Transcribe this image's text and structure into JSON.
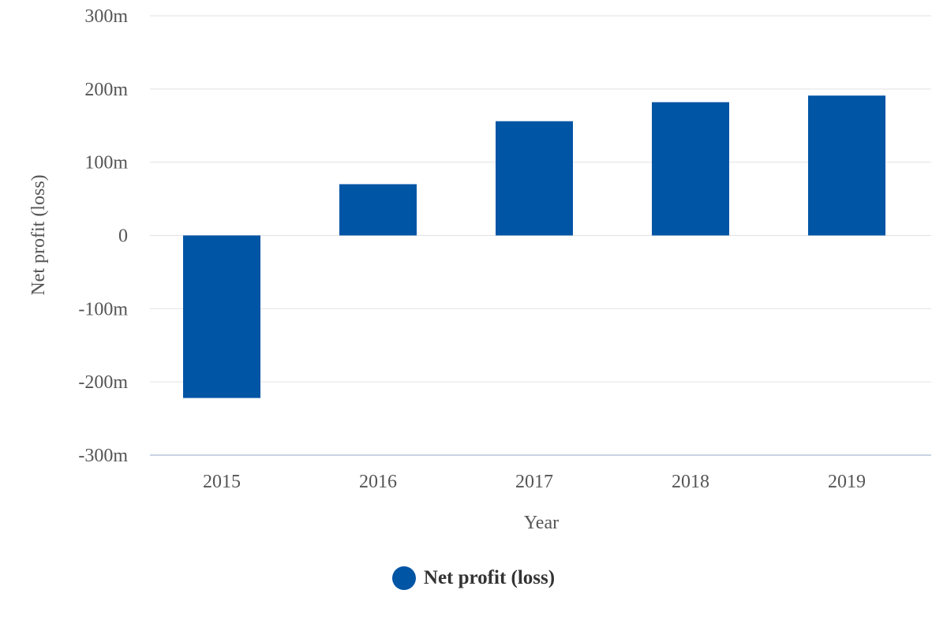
{
  "chart_data": {
    "type": "bar",
    "categories": [
      "2015",
      "2016",
      "2017",
      "2018",
      "2019"
    ],
    "series": [
      {
        "name": "Net profit (loss)",
        "values": [
          -222,
          70,
          156,
          182,
          191
        ],
        "color": "#0055a5"
      }
    ],
    "xlabel": "Year",
    "ylabel": "Net profit (loss)",
    "ylim": [
      -300,
      300
    ],
    "yticks": [
      {
        "value": 300,
        "label": "300m"
      },
      {
        "value": 200,
        "label": "200m"
      },
      {
        "value": 100,
        "label": "100m"
      },
      {
        "value": 0,
        "label": "0"
      },
      {
        "value": -100,
        "label": "-100m"
      },
      {
        "value": -200,
        "label": "-200m"
      },
      {
        "value": -300,
        "label": "-300m"
      }
    ],
    "grid": true,
    "legend": "bottom-center"
  }
}
